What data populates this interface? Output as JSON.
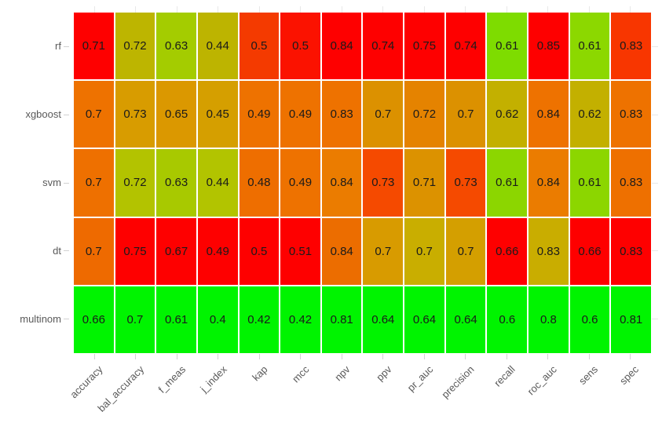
{
  "chart_data": {
    "type": "heatmap",
    "title": "",
    "xlabel": "",
    "ylabel": "",
    "legend": "none",
    "rows": [
      "rf",
      "xgboost",
      "svm",
      "dt",
      "multinom"
    ],
    "columns": [
      "accuracy",
      "bal_accuracy",
      "f_meas",
      "j_index",
      "kap",
      "mcc",
      "npv",
      "ppv",
      "pr_auc",
      "precision",
      "recall",
      "roc_auc",
      "sens",
      "spec"
    ],
    "values": [
      [
        0.71,
        0.72,
        0.63,
        0.44,
        0.5,
        0.5,
        0.84,
        0.74,
        0.75,
        0.74,
        0.61,
        0.85,
        0.61,
        0.83
      ],
      [
        0.7,
        0.73,
        0.65,
        0.45,
        0.49,
        0.49,
        0.83,
        0.7,
        0.72,
        0.7,
        0.62,
        0.84,
        0.62,
        0.83
      ],
      [
        0.7,
        0.72,
        0.63,
        0.44,
        0.48,
        0.49,
        0.84,
        0.73,
        0.71,
        0.73,
        0.61,
        0.84,
        0.61,
        0.83
      ],
      [
        0.7,
        0.75,
        0.67,
        0.49,
        0.5,
        0.51,
        0.84,
        0.7,
        0.7,
        0.7,
        0.66,
        0.83,
        0.66,
        0.83
      ],
      [
        0.66,
        0.7,
        0.61,
        0.4,
        0.42,
        0.42,
        0.81,
        0.64,
        0.64,
        0.64,
        0.6,
        0.8,
        0.6,
        0.81
      ]
    ],
    "cell_colors": [
      [
        "#FE0000",
        "#BDB500",
        "#A4CC00",
        "#BDB400",
        "#F43A00",
        "#FB1200",
        "#FE0000",
        "#FE0000",
        "#FE0000",
        "#FE0000",
        "#7EDC00",
        "#FE0000",
        "#8CD800",
        "#F83600"
      ],
      [
        "#EE7200",
        "#D89C00",
        "#DB9800",
        "#D59F00",
        "#EE7200",
        "#EE7200",
        "#EE7200",
        "#DC9100",
        "#E58300",
        "#DC9100",
        "#C3B000",
        "#EE7200",
        "#C3B000",
        "#EE7200"
      ],
      [
        "#EE7000",
        "#B3C300",
        "#A8C900",
        "#B2C400",
        "#EE6E00",
        "#EE7200",
        "#EB7C00",
        "#F54A00",
        "#DC9200",
        "#F54A00",
        "#8CD600",
        "#EB7C00",
        "#8CD600",
        "#EE7000"
      ],
      [
        "#EE6A00",
        "#FE0000",
        "#FE0000",
        "#FE0000",
        "#FE0000",
        "#FE0000",
        "#EC6D00",
        "#D89B00",
        "#C9AE00",
        "#D49F00",
        "#FE0000",
        "#C9AD00",
        "#FE0000",
        "#FE0000"
      ],
      [
        "#00F400",
        "#00F400",
        "#00F400",
        "#00F400",
        "#00F400",
        "#00F400",
        "#00F400",
        "#00F400",
        "#00F400",
        "#00F400",
        "#00F400",
        "#00F400",
        "#00F400",
        "#00F400"
      ]
    ],
    "colorscale": {
      "description": "per-column scale: lowest value green, highest value red",
      "low": "#00F400",
      "mid": "#D89C00",
      "high": "#FE0000"
    },
    "grid": "off"
  },
  "style": {
    "background": "#FFFFFF",
    "cell_value_color": "#1A1A1A",
    "axis_label_color": "#595959",
    "tick_color": "#D2D2D2",
    "grid_stub_color": "#E8E8E8",
    "cell_gap_color": "#FFFFFF"
  }
}
